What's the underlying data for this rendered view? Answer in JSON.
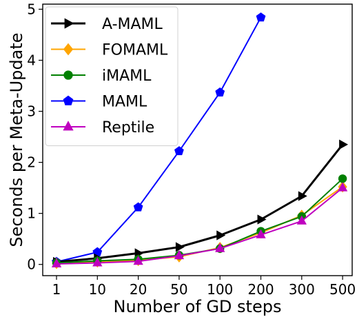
{
  "chart_data": {
    "type": "line",
    "xlabel": "Number of GD steps",
    "ylabel": "Seconds per Meta-Update",
    "categories": [
      "1",
      "10",
      "20",
      "50",
      "100",
      "200",
      "300",
      "500"
    ],
    "yticks": [
      0,
      1,
      2,
      3,
      4,
      5
    ],
    "ylim": [
      -0.22,
      5.1
    ],
    "grid": false,
    "legend_position": "top-left",
    "series": [
      {
        "name": "A-MAML",
        "color": "#000000",
        "marker": "triangle-right",
        "values": [
          0.05,
          0.12,
          0.22,
          0.34,
          0.57,
          0.88,
          1.34,
          2.35
        ]
      },
      {
        "name": "FOMAML",
        "color": "#ffa500",
        "marker": "diamond",
        "values": [
          0.02,
          0.05,
          0.08,
          0.15,
          0.33,
          0.62,
          0.96,
          1.52
        ]
      },
      {
        "name": "iMAML",
        "color": "#008000",
        "marker": "circle",
        "values": [
          0.03,
          0.07,
          0.1,
          0.18,
          0.31,
          0.65,
          0.94,
          1.68
        ]
      },
      {
        "name": "MAML",
        "color": "#0000ff",
        "marker": "pentagon",
        "values": [
          0.05,
          0.24,
          1.12,
          2.22,
          3.37,
          4.84,
          null,
          null
        ]
      },
      {
        "name": "Reptile",
        "color": "#bf00bf",
        "marker": "triangle-up",
        "values": [
          0.01,
          0.03,
          0.06,
          0.17,
          0.31,
          0.58,
          0.85,
          1.5
        ]
      }
    ]
  }
}
